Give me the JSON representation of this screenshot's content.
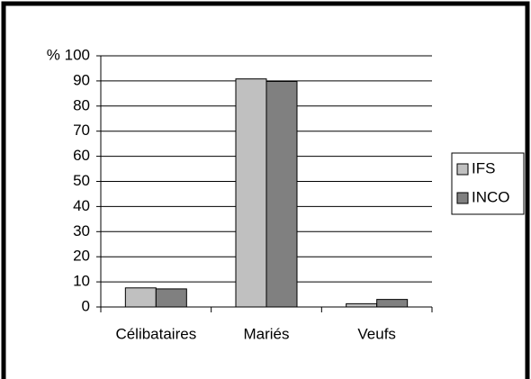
{
  "chart_data": {
    "type": "bar",
    "categories": [
      "Célibataires",
      "Mariés",
      "Veufs"
    ],
    "series": [
      {
        "name": "IFS",
        "color": "#c0c0c0",
        "values": [
          7.6,
          90.8,
          1.3
        ]
      },
      {
        "name": "INCO",
        "color": "#808080",
        "values": [
          7.2,
          89.8,
          3.0
        ]
      }
    ],
    "ylim": [
      0,
      100
    ],
    "yticks": [
      0,
      10,
      20,
      30,
      40,
      50,
      60,
      70,
      80,
      90,
      {
        "value": 100,
        "label": "% 100"
      }
    ],
    "grid": true,
    "legend": "right"
  }
}
